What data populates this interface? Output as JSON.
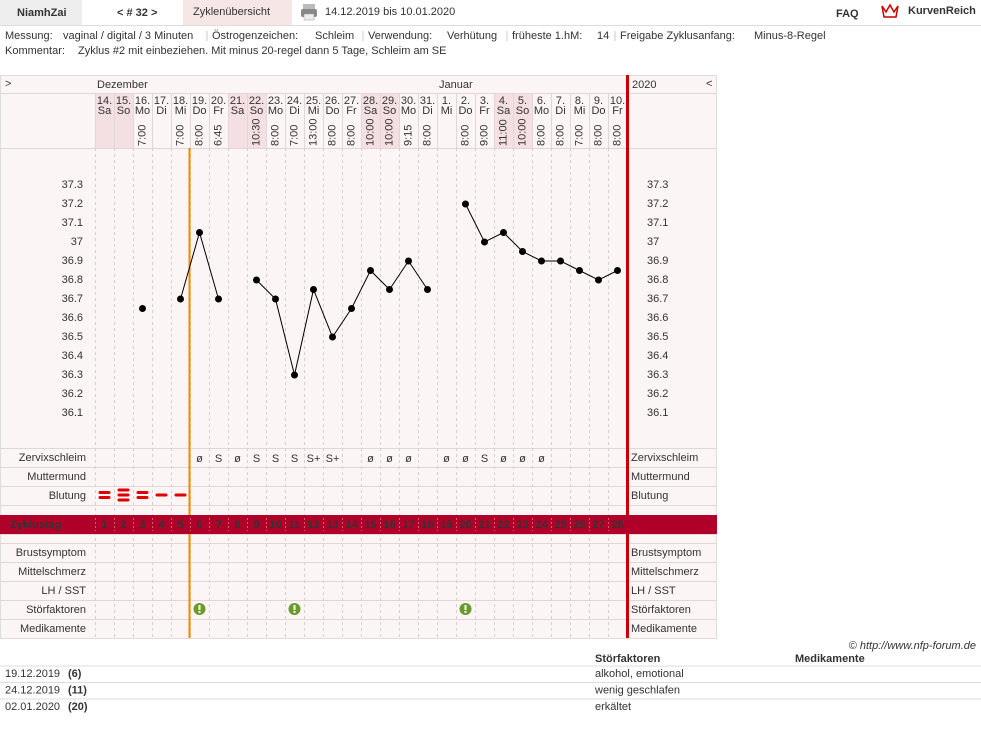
{
  "header": {
    "user": "NiamhZai",
    "cycle_nav": "< # 32 >",
    "tab": "Zyklenübersicht",
    "period": "14.12.2019 bis 10.01.2020",
    "faq": "FAQ",
    "brand": "KurvenReich"
  },
  "info": {
    "fields": [
      {
        "label": "Messung:",
        "value": "vaginal / digital / 3 Minuten"
      },
      {
        "label": "Östrogenzeichen:",
        "value": "Schleim"
      },
      {
        "label": "Verwendung:",
        "value": "Verhütung"
      },
      {
        "label": "früheste 1.hM:",
        "value": "14"
      },
      {
        "label": "Freigabe Zyklusanfang:",
        "value": "Minus-8-Regel"
      }
    ],
    "comment": {
      "label": "Kommentar:",
      "value": "Zyklus #2  mit einbeziehen. Mit minus 20-regel dann 5 Tage,  Schleim am SE"
    }
  },
  "chart_data": {
    "type": "line",
    "nav_left": ">",
    "nav_right": "<",
    "months": [
      "Dezember",
      "Januar"
    ],
    "year": "2020",
    "dates": [
      "14.",
      "15.",
      "16.",
      "17.",
      "18.",
      "19.",
      "20.",
      "21.",
      "22.",
      "23.",
      "24.",
      "25.",
      "26.",
      "27.",
      "28.",
      "29.",
      "30.",
      "31.",
      "1.",
      "2.",
      "3.",
      "4.",
      "5.",
      "6.",
      "7.",
      "8.",
      "9.",
      "10."
    ],
    "weekdays": [
      "Sa",
      "So",
      "Mo",
      "Di",
      "Mi",
      "Do",
      "Fr",
      "Sa",
      "So",
      "Mo",
      "Di",
      "Mi",
      "Do",
      "Fr",
      "Sa",
      "So",
      "Mo",
      "Di",
      "Mi",
      "Do",
      "Fr",
      "Sa",
      "So",
      "Mo",
      "Di",
      "Mi",
      "Do",
      "Fr"
    ],
    "times": [
      null,
      null,
      "7:00",
      null,
      "7:00",
      "8:00",
      "6:45",
      null,
      "10:30",
      "8:00",
      "7:00",
      "13:00",
      "8:00",
      "8:00",
      "10:00",
      "10:00",
      "9:15",
      "8:00",
      null,
      "8:00",
      "9:00",
      "11:00",
      "10:00",
      "8:00",
      "8:00",
      "7:00",
      "8:00",
      "8:00"
    ],
    "values": [
      null,
      null,
      36.65,
      null,
      36.7,
      37.05,
      36.7,
      null,
      36.8,
      36.7,
      36.3,
      36.75,
      36.5,
      36.65,
      36.85,
      36.75,
      36.9,
      36.75,
      null,
      37.2,
      37.0,
      37.05,
      36.95,
      36.9,
      36.9,
      36.85,
      36.8,
      36.85
    ],
    "color": "#000000",
    "ylim": [
      35.9,
      37.5
    ],
    "yticks": [
      37.3,
      37.2,
      37.1,
      37,
      36.9,
      36.8,
      36.7,
      36.6,
      36.5,
      36.4,
      36.3,
      36.2,
      36.1
    ],
    "row_labels": {
      "mucus": "Zervixschleim",
      "cervix": "Muttermund",
      "bleeding": "Blutung",
      "cycle_day": "Zyklustag"
    },
    "mucus": [
      null,
      null,
      null,
      null,
      null,
      "ø",
      "S",
      "ø",
      "S",
      "S",
      "S",
      "S+",
      "S+",
      null,
      "ø",
      "ø",
      "ø",
      null,
      "ø",
      "ø",
      "S",
      "ø",
      "ø",
      "ø",
      null,
      null,
      null,
      null
    ],
    "bleeding": [
      2,
      3,
      2,
      1,
      1,
      null,
      null,
      null,
      null,
      null,
      null,
      null,
      null,
      null,
      null,
      null,
      null,
      null,
      null,
      null,
      null,
      null,
      null,
      null,
      null,
      null,
      null,
      null
    ],
    "cycle_days": [
      1,
      2,
      3,
      4,
      5,
      6,
      7,
      8,
      9,
      10,
      11,
      12,
      13,
      14,
      15,
      16,
      17,
      18,
      19,
      20,
      21,
      22,
      23,
      24,
      25,
      26,
      27,
      28
    ],
    "lower_rows": [
      "Brustsymptom",
      "Mittelschmerz",
      "LH / SST",
      "Störfaktoren",
      "Medikamente"
    ]
  },
  "notes": {
    "credit": "© http://www.nfp-forum.de",
    "headers": [
      "Störfaktoren",
      "Medikamente"
    ],
    "rows": [
      {
        "date": "19.12.2019",
        "day": {
          "value": 6,
          "label": "(6)"
        },
        "factors": "alkohol, emotional"
      },
      {
        "date": "24.12.2019",
        "day": {
          "value": 11,
          "label": "(11)"
        },
        "factors": "wenig geschlafen"
      },
      {
        "date": "02.01.2020",
        "day": {
          "value": 20,
          "label": "(20)"
        },
        "factors": "erkältet"
      }
    ]
  }
}
